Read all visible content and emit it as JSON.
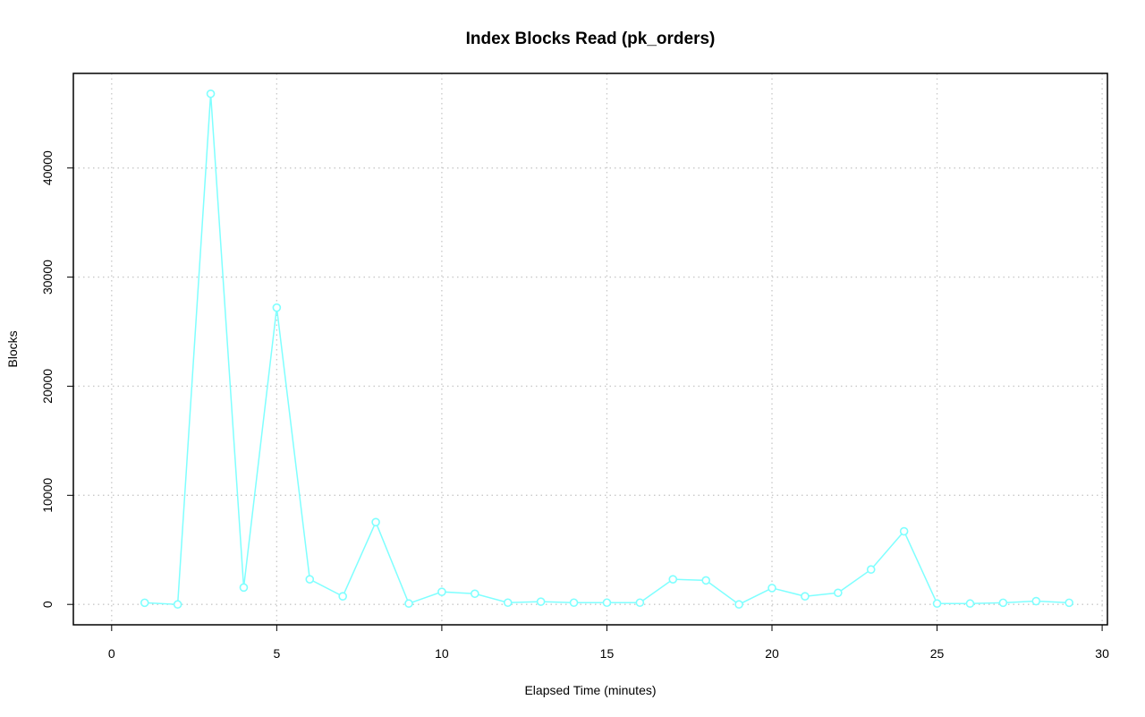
{
  "chart_data": {
    "type": "line",
    "title": "Index Blocks Read (pk_orders)",
    "x_label": "Elapsed Time (minutes)",
    "y_label": "Blocks",
    "x": [
      1,
      2,
      3,
      4,
      5,
      6,
      7,
      8,
      9,
      10,
      11,
      12,
      13,
      14,
      15,
      16,
      17,
      18,
      19,
      20,
      21,
      22,
      23,
      24,
      25,
      26,
      27,
      28,
      29
    ],
    "series": [
      {
        "name": "pk_orders",
        "color": "#7fffff",
        "values": [
          150,
          0,
          46800,
          1550,
          27200,
          2300,
          740,
          7540,
          80,
          1150,
          980,
          160,
          250,
          160,
          160,
          160,
          2300,
          2200,
          0,
          1500,
          740,
          1060,
          3200,
          6700,
          80,
          80,
          150,
          300,
          150
        ]
      }
    ],
    "xlim": [
      -1.16,
      30.16
    ],
    "xticks": [
      0,
      5,
      10,
      15,
      20,
      25,
      30
    ],
    "ylim": [
      -1870,
      48670
    ],
    "yticks": [
      0,
      10000,
      20000,
      30000,
      40000
    ],
    "grid": true
  }
}
